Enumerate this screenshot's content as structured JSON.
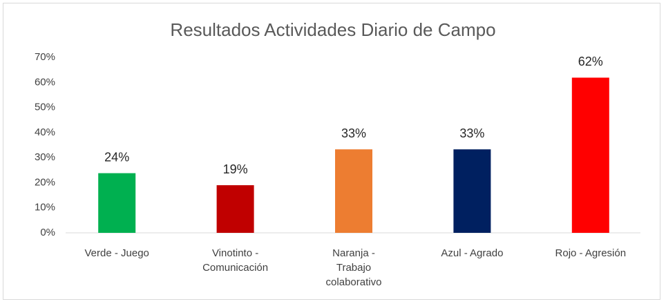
{
  "chart_data": {
    "type": "bar",
    "title": "Resultados Actividades Diario de Campo",
    "categories": [
      "Verde - Juego",
      "Vinotinto - Comunicación",
      "Naranja - Trabajo colaborativo",
      "Azul - Agrado",
      "Rojo - Agresión"
    ],
    "values": [
      23.8,
      19,
      33.3,
      33.3,
      61.9
    ],
    "value_labels": [
      "24%",
      "19%",
      "33%",
      "33%",
      "62%"
    ],
    "colors": [
      "#00b050",
      "#c00000",
      "#ed7d31",
      "#002060",
      "#ff0000"
    ],
    "ylim": [
      0,
      70
    ],
    "yticks": [
      {
        "value": 0,
        "label": "0%"
      },
      {
        "value": 10,
        "label": "10%"
      },
      {
        "value": 20,
        "label": "20%"
      },
      {
        "value": 30,
        "label": "30%"
      },
      {
        "value": 40,
        "label": "40%"
      },
      {
        "value": 50,
        "label": "50%"
      },
      {
        "value": 60,
        "label": "60%"
      },
      {
        "value": 70,
        "label": "70%"
      }
    ],
    "grid": false
  }
}
